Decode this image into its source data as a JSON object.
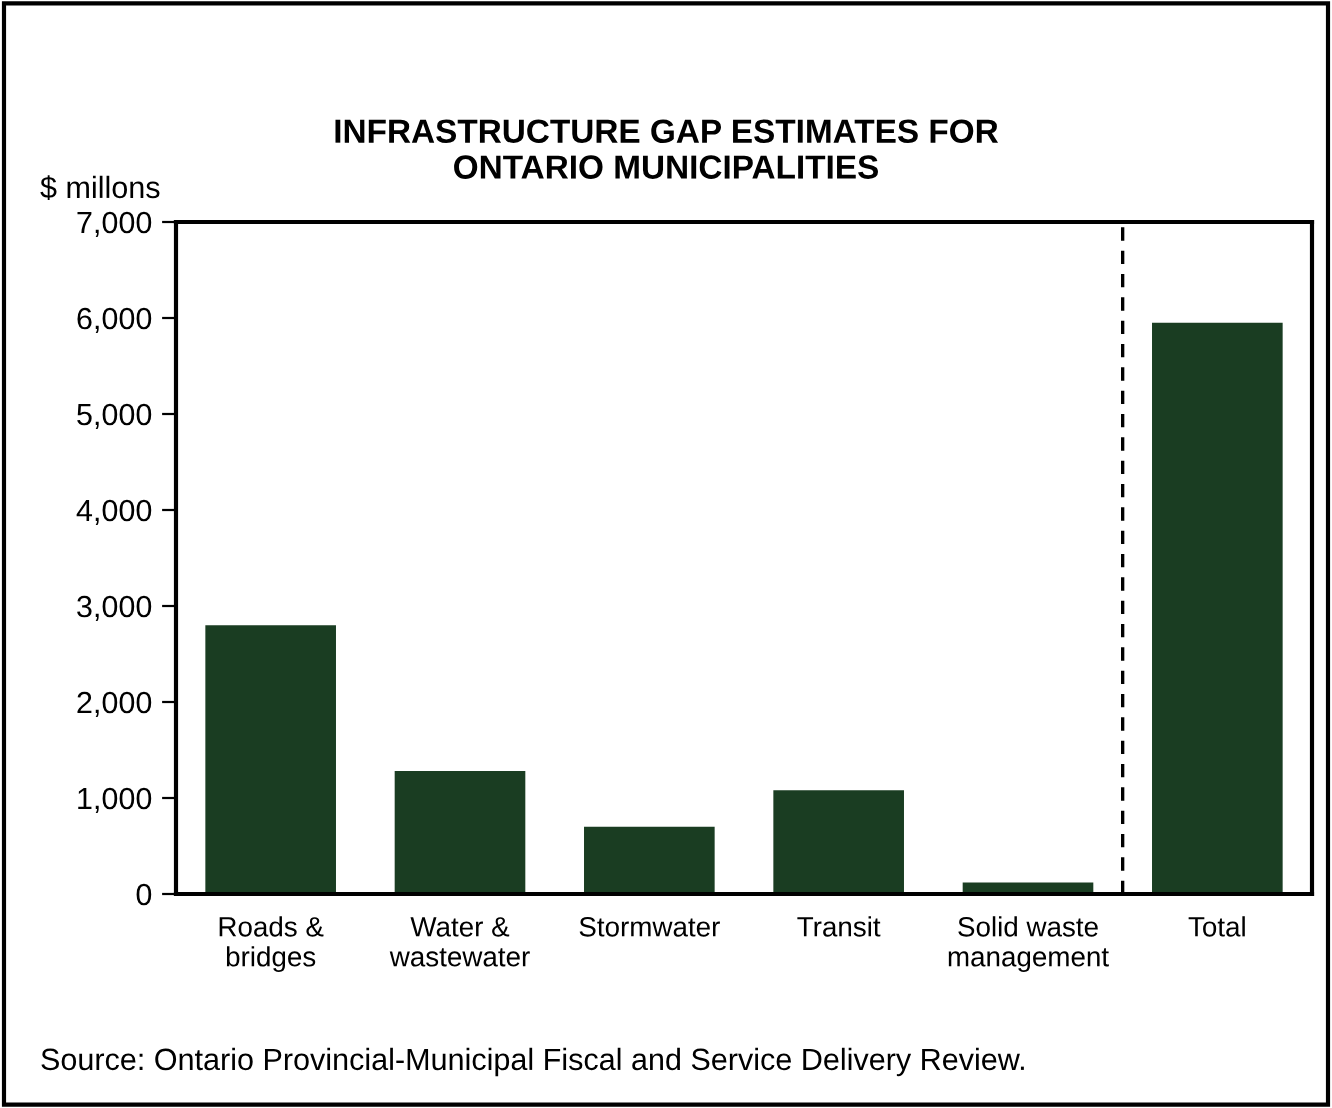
{
  "chart_data": {
    "type": "bar",
    "title": "INFRASTRUCTURE GAP ESTIMATES FOR\nONTARIO MUNICIPALITIES",
    "ylabel": "$ millons",
    "categories": [
      "Roads &\nbridges",
      "Water &\nwastewater",
      "Stormwater",
      "Transit",
      "Solid waste\nmanagement",
      "Total"
    ],
    "values": [
      2800,
      1280,
      700,
      1080,
      120,
      5950
    ],
    "color": "#1a3d22",
    "ylim": [
      0,
      7000
    ],
    "yticks": [
      {
        "value": 0,
        "label": "0"
      },
      {
        "value": 1000,
        "label": "1,000"
      },
      {
        "value": 2000,
        "label": "2,000"
      },
      {
        "value": 3000,
        "label": "3,000"
      },
      {
        "value": 4000,
        "label": "4,000"
      },
      {
        "value": 5000,
        "label": "5,000"
      },
      {
        "value": 6000,
        "label": "6,000"
      },
      {
        "value": 7000,
        "label": "7,000"
      }
    ],
    "grid": false,
    "legend": false,
    "annotations": [
      "Source: Ontario Provincial-Municipal Fiscal and Service Delivery Review."
    ]
  }
}
